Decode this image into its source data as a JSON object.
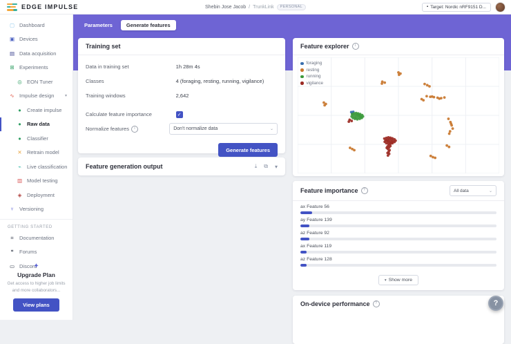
{
  "header": {
    "logo_text": "EDGE IMPULSE",
    "breadcrumb_user": "Shebin Jose Jacob",
    "breadcrumb_sep": "/",
    "breadcrumb_project": "TrunkLink",
    "breadcrumb_badge": "PERSONAL",
    "target_label": "Target: Nordic nRF9151 D..."
  },
  "icons": {
    "info": "i",
    "question": "?",
    "check": "✓",
    "caret_down": "▾",
    "chevron_down": "⌄",
    "download": "⤓",
    "copy": "⧉",
    "chip": "▪",
    "sparkle": "✦",
    "help": "?"
  },
  "sidebar": {
    "items": [
      {
        "label": "Dashboard",
        "icon": "dashboard",
        "glyph": "▢",
        "color": "#8ec9ec",
        "indent": 0
      },
      {
        "label": "Devices",
        "icon": "devices",
        "glyph": "▣",
        "color": "#4a5fc1",
        "indent": 0
      },
      {
        "label": "Data acquisition",
        "icon": "data-acquisition",
        "glyph": "▤",
        "color": "#39418f",
        "indent": 0
      },
      {
        "label": "Experiments",
        "icon": "experiments",
        "glyph": "⊞",
        "color": "#2f9e63",
        "indent": 0
      },
      {
        "label": "EON Tuner",
        "icon": "eon-tuner",
        "glyph": "◎",
        "color": "#2f9e63",
        "indent": 1
      },
      {
        "label": "Impulse design",
        "icon": "impulse-design",
        "glyph": "∿",
        "color": "#e05746",
        "indent": 0,
        "caret": true
      },
      {
        "label": "Create impulse",
        "icon": "create-impulse",
        "glyph": "●",
        "color": "#2f9e63",
        "indent": 1
      },
      {
        "label": "Raw data",
        "icon": "raw-data",
        "glyph": "●",
        "color": "#2f9e63",
        "indent": 1,
        "active": true
      },
      {
        "label": "Classifier",
        "icon": "classifier",
        "glyph": "●",
        "color": "#2f9e63",
        "indent": 1
      },
      {
        "label": "Retrain model",
        "icon": "retrain-model",
        "glyph": "✕",
        "color": "#e8a33d",
        "indent": 1
      },
      {
        "label": "Live classification",
        "icon": "live-classification",
        "glyph": "⌁",
        "color": "#2bb3a3",
        "indent": 1
      },
      {
        "label": "Model testing",
        "icon": "model-testing",
        "glyph": "▥",
        "color": "#d95757",
        "indent": 1
      },
      {
        "label": "Deployment",
        "icon": "deployment",
        "glyph": "◈",
        "color": "#b0413e",
        "indent": 1
      },
      {
        "label": "Versioning",
        "icon": "versioning",
        "glyph": "⑂",
        "color": "#5b63d3",
        "indent": 0
      }
    ],
    "section_label": "GETTING STARTED",
    "links": [
      {
        "label": "Documentation",
        "icon": "documentation",
        "glyph": "⌗",
        "color": "#3b4252"
      },
      {
        "label": "Forums",
        "icon": "forums",
        "glyph": "❝",
        "color": "#3b4252"
      },
      {
        "label": "Discord",
        "icon": "discord",
        "glyph": "▭",
        "color": "#3b4252"
      }
    ],
    "upgrade": {
      "title": "Upgrade Plan",
      "description": "Get access to higher job limits and more collaborators...",
      "button": "View plans"
    }
  },
  "tabs": [
    {
      "label": "Parameters",
      "active": false
    },
    {
      "label": "Generate features",
      "active": true
    }
  ],
  "training_set": {
    "title": "Training set",
    "rows": [
      {
        "label": "Data in training set",
        "value": "1h 28m 4s"
      },
      {
        "label": "Classes",
        "value": "4 (foraging, resting, running, vigilance)"
      },
      {
        "label": "Training windows",
        "value": "2,642"
      }
    ],
    "checkbox_label": "Calculate feature importance",
    "checkbox_checked": true,
    "normalize_label": "Normalize features",
    "normalize_value": "Don't normalize data",
    "generate_button": "Generate features"
  },
  "feature_generation_output": {
    "title": "Feature generation output"
  },
  "feature_explorer": {
    "title": "Feature explorer"
  },
  "feature_importance": {
    "title": "Feature importance",
    "filter_value": "All data",
    "show_more": "Show more",
    "bars": [
      {
        "label": "ax Feature 56",
        "percent": 6
      },
      {
        "label": "ay Feature 139",
        "percent": 4.5
      },
      {
        "label": "az Feature 92",
        "percent": 4.5
      },
      {
        "label": "ax Feature 119",
        "percent": 3
      },
      {
        "label": "az Feature 128",
        "percent": 3
      }
    ]
  },
  "on_device": {
    "title": "On-device performance"
  },
  "chart_data": {
    "type": "scatter",
    "title": "Feature explorer",
    "legend_position": "top-left",
    "grid": true,
    "axes_labeled": false,
    "units": "percent-of-plot-area",
    "series": [
      {
        "name": "foraging",
        "color": "#3a6fae",
        "points": [
          [
            26.6,
            47.2
          ],
          [
            27.6,
            47.0
          ],
          [
            27.1,
            48.2
          ]
        ]
      },
      {
        "name": "resting",
        "color": "#c9772e",
        "points": [
          [
            42,
            21
          ],
          [
            43.2,
            21.8
          ],
          [
            41.8,
            22.6
          ],
          [
            50,
            13
          ],
          [
            51,
            14
          ],
          [
            50.3,
            15
          ],
          [
            63,
            23
          ],
          [
            64.3,
            24
          ],
          [
            65.4,
            25
          ],
          [
            64,
            33.5
          ],
          [
            65.8,
            34
          ],
          [
            67.6,
            34.3
          ],
          [
            69.4,
            34.8
          ],
          [
            71.2,
            35.2
          ],
          [
            72.8,
            34.6
          ],
          [
            66.7,
            33.8
          ],
          [
            70.3,
            35.6
          ],
          [
            61.5,
            36
          ],
          [
            62.4,
            37
          ],
          [
            13,
            39
          ],
          [
            14,
            40.2
          ],
          [
            13.4,
            41.3
          ],
          [
            74.8,
            53
          ],
          [
            75.8,
            55.8
          ],
          [
            76.4,
            58.6
          ],
          [
            76.9,
            61.4
          ],
          [
            75.6,
            63.8
          ],
          [
            76.1,
            57.2
          ],
          [
            75.2,
            65.8
          ],
          [
            26,
            78
          ],
          [
            27.1,
            79
          ],
          [
            28.1,
            80
          ],
          [
            66,
            85
          ],
          [
            67.1,
            86
          ],
          [
            68.2,
            86.6
          ],
          [
            74,
            76
          ],
          [
            75.1,
            77.2
          ]
        ]
      },
      {
        "name": "running",
        "color": "#3c9a3c",
        "points": [
          [
            27,
            49
          ],
          [
            28,
            48.3
          ],
          [
            29,
            48
          ],
          [
            30,
            48.4
          ],
          [
            31,
            48.9
          ],
          [
            32,
            49.8
          ],
          [
            32.4,
            51
          ],
          [
            31.8,
            52.2
          ],
          [
            30.8,
            53
          ],
          [
            29.6,
            53.4
          ],
          [
            28.4,
            53
          ],
          [
            27.4,
            52.2
          ],
          [
            26.8,
            51
          ],
          [
            27.6,
            50
          ],
          [
            28.6,
            49.4
          ],
          [
            29.6,
            49.2
          ],
          [
            30.6,
            49.8
          ],
          [
            31.2,
            50.8
          ],
          [
            30.2,
            51.8
          ],
          [
            29,
            52.2
          ],
          [
            28.2,
            51.4
          ],
          [
            29.2,
            50.6
          ],
          [
            30.2,
            50.2
          ],
          [
            31.4,
            51.6
          ]
        ]
      },
      {
        "name": "vigilance",
        "color": "#9c2b24",
        "points": [
          [
            25.8,
            53.8
          ],
          [
            26.8,
            54.8
          ],
          [
            25.4,
            55.4
          ],
          [
            43,
            70
          ],
          [
            44,
            69.4
          ],
          [
            45,
            69
          ],
          [
            46,
            69.3
          ],
          [
            47,
            69.8
          ],
          [
            48,
            70.6
          ],
          [
            48.6,
            71.8
          ],
          [
            48,
            73
          ],
          [
            47,
            74
          ],
          [
            46,
            74.6
          ],
          [
            45,
            74.4
          ],
          [
            44,
            74
          ],
          [
            43.2,
            72.8
          ],
          [
            43.6,
            71.4
          ],
          [
            44.6,
            70.8
          ],
          [
            45.6,
            70.4
          ],
          [
            46.6,
            71
          ],
          [
            47.4,
            72
          ],
          [
            46.8,
            73.2
          ],
          [
            45.8,
            73.6
          ],
          [
            44.8,
            72.6
          ],
          [
            44.2,
            71.8
          ],
          [
            45.2,
            72
          ],
          [
            46.2,
            72.4
          ],
          [
            45.2,
            75.6
          ],
          [
            44.6,
            76.8
          ],
          [
            44.2,
            78
          ],
          [
            44.8,
            79
          ],
          [
            45.6,
            80
          ],
          [
            45.2,
            81.2
          ],
          [
            44.6,
            82.4
          ],
          [
            45.4,
            83.2
          ],
          [
            46,
            76.4
          ],
          [
            45.4,
            77.6
          ],
          [
            44.8,
            84.6
          ]
        ]
      }
    ]
  }
}
